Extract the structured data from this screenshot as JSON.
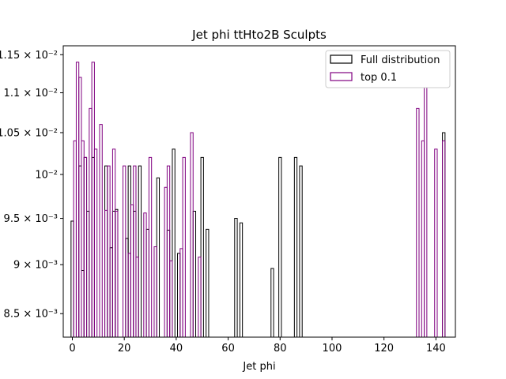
{
  "chart_data": {
    "type": "histogram",
    "title": "Jet phi ttHto2B Sculpts",
    "xlabel": "Jet phi",
    "ylabel": "",
    "yscale": "log",
    "xlim": [
      -3.5,
      147.5
    ],
    "ylim": [
      0.00827,
      0.01162
    ],
    "xticks": [
      0,
      20,
      40,
      60,
      80,
      100,
      120,
      140
    ],
    "xtick_labels": [
      "0",
      "20",
      "40",
      "60",
      "80",
      "100",
      "120",
      "140"
    ],
    "yticks": [
      0.0085,
      0.009,
      0.0095,
      0.01,
      0.0105,
      0.011,
      0.0115
    ],
    "ytick_labels": [
      "8.5 × 10⁻³",
      "9 × 10⁻³",
      "9.5 × 10⁻³",
      "10⁻²",
      "1.05 × 10⁻²",
      "1.1 × 10⁻²",
      "1.15 × 10⁻²"
    ],
    "legend_position": "top-right",
    "series": [
      {
        "name": "Full distribution",
        "color": "#000000",
        "x": [
          0,
          1,
          2,
          3,
          4,
          5,
          6,
          7,
          8,
          9,
          10,
          11,
          12,
          13,
          14,
          15,
          16,
          17,
          18,
          19,
          20,
          21,
          22,
          23,
          24,
          25,
          26,
          27,
          28,
          29,
          30,
          31,
          32,
          33,
          34,
          35,
          36,
          37,
          38,
          39,
          40,
          41,
          42,
          43,
          44,
          45,
          46,
          47,
          48,
          49,
          50,
          51,
          52,
          53,
          54,
          55,
          56,
          57,
          58,
          59,
          60,
          61,
          62,
          63,
          64,
          65,
          66,
          67,
          68,
          69,
          70,
          71,
          72,
          73,
          74,
          75,
          76,
          77,
          78,
          79,
          80,
          81,
          82,
          83,
          84,
          85,
          86,
          87,
          88,
          89,
          90,
          91,
          92,
          93,
          94,
          95,
          96,
          97,
          98,
          99,
          100,
          101,
          102,
          103,
          104,
          105,
          106,
          107,
          108,
          109,
          110,
          111,
          112,
          113,
          114,
          115,
          116,
          117,
          118,
          119,
          120,
          121,
          122,
          123,
          124,
          125,
          126,
          127,
          128,
          129,
          130,
          131,
          132,
          133,
          134,
          135,
          136,
          137,
          138,
          139,
          140,
          141,
          142,
          143
        ],
        "values": [
          0.00947,
          0.00827,
          0.00827,
          0.0101,
          0.00894,
          0.0102,
          0.00958,
          0.00827,
          0.0102,
          0.00827,
          0.00827,
          0.00827,
          0.00827,
          0.0101,
          0.00827,
          0.00918,
          0.00958,
          0.0096,
          0.00827,
          0.00827,
          0.00827,
          0.00928,
          0.0101,
          0.00827,
          0.00958,
          0.00827,
          0.0101,
          0.00827,
          0.00827,
          0.00938,
          0.00827,
          0.00827,
          0.00827,
          0.00996,
          0.00827,
          0.00827,
          0.00827,
          0.00937,
          0.00827,
          0.0103,
          0.00827,
          0.00912,
          0.00827,
          0.00827,
          0.00827,
          0.00827,
          0.00827,
          0.00958,
          0.00827,
          0.00827,
          0.0102,
          0.00827,
          0.00938,
          0.00827,
          0.00827,
          0.00827,
          0.00827,
          0.00827,
          0.00827,
          0.00827,
          0.00827,
          0.00827,
          0.00827,
          0.0095,
          0.00827,
          0.00945,
          0.00827,
          0.00827,
          0.00827,
          0.00827,
          0.00827,
          0.00827,
          0.00827,
          0.00827,
          0.00827,
          0.00827,
          0.00827,
          0.00896,
          0.00827,
          0.00827,
          0.0102,
          0.00827,
          0.00827,
          0.00827,
          0.00827,
          0.00827,
          0.0102,
          0.00827,
          0.0101,
          0.00827,
          0.00827,
          0.00827,
          0.00827,
          0.00827,
          0.00827,
          0.00827,
          0.00827,
          0.00827,
          0.00827,
          0.00827,
          0.00827,
          0.00827,
          0.00827,
          0.00827,
          0.00827,
          0.00827,
          0.00827,
          0.00827,
          0.00827,
          0.00827,
          0.00827,
          0.00827,
          0.00827,
          0.00827,
          0.00827,
          0.00827,
          0.00827,
          0.00827,
          0.00827,
          0.00827,
          0.00827,
          0.00827,
          0.00827,
          0.00827,
          0.00827,
          0.00827,
          0.00827,
          0.00827,
          0.00827,
          0.00827,
          0.00827,
          0.00827,
          0.00827,
          0.00827,
          0.00827,
          0.00827,
          0.00827,
          0.00827,
          0.00827,
          0.00827,
          0.00827,
          0.00827,
          0.00827,
          0.0105
        ]
      },
      {
        "name": "top 0.1",
        "color": "#800080",
        "x": [
          0,
          1,
          2,
          3,
          4,
          5,
          6,
          7,
          8,
          9,
          10,
          11,
          12,
          13,
          14,
          15,
          16,
          17,
          18,
          19,
          20,
          21,
          22,
          23,
          24,
          25,
          26,
          27,
          28,
          29,
          30,
          31,
          32,
          33,
          34,
          35,
          36,
          37,
          38,
          39,
          40,
          41,
          42,
          43,
          44,
          45,
          46,
          47,
          48,
          49,
          50,
          51,
          52,
          53,
          54,
          55,
          56,
          57,
          58,
          59,
          60,
          61,
          62,
          63,
          64,
          65,
          66,
          67,
          68,
          69,
          70,
          71,
          72,
          73,
          74,
          75,
          76,
          77,
          78,
          79,
          80,
          81,
          82,
          83,
          84,
          85,
          86,
          87,
          88,
          89,
          90,
          91,
          92,
          93,
          94,
          95,
          96,
          97,
          98,
          99,
          100,
          101,
          102,
          103,
          104,
          105,
          106,
          107,
          108,
          109,
          110,
          111,
          112,
          113,
          114,
          115,
          116,
          117,
          118,
          119,
          120,
          121,
          122,
          123,
          124,
          125,
          126,
          127,
          128,
          129,
          130,
          131,
          132,
          133,
          134,
          135,
          136,
          137,
          138,
          139,
          140,
          141,
          142,
          143
        ],
        "values": [
          0.00827,
          0.0104,
          0.0114,
          0.0112,
          0.0104,
          0.0102,
          0.00827,
          0.0108,
          0.0114,
          0.0103,
          0.00827,
          0.0106,
          0.00827,
          0.00959,
          0.0101,
          0.00827,
          0.0103,
          0.00958,
          0.00827,
          0.00827,
          0.0101,
          0.00827,
          0.00912,
          0.00965,
          0.0101,
          0.00908,
          0.00827,
          0.00827,
          0.00956,
          0.00827,
          0.0102,
          0.00827,
          0.00919,
          0.00827,
          0.00827,
          0.00827,
          0.00985,
          0.0101,
          0.00904,
          0.00827,
          0.00827,
          0.00827,
          0.00917,
          0.0102,
          0.00827,
          0.00827,
          0.0105,
          0.00827,
          0.00827,
          0.00908,
          0.00827,
          0.00827,
          0.00827,
          0.00827,
          0.00827,
          0.00827,
          0.00827,
          0.00827,
          0.00827,
          0.00827,
          0.00827,
          0.00827,
          0.00827,
          0.00827,
          0.00827,
          0.00827,
          0.00827,
          0.00827,
          0.00827,
          0.00827,
          0.00827,
          0.00827,
          0.00827,
          0.00827,
          0.00827,
          0.00827,
          0.00827,
          0.00827,
          0.00827,
          0.00827,
          0.00827,
          0.00827,
          0.00827,
          0.00827,
          0.00827,
          0.00827,
          0.00827,
          0.00827,
          0.00827,
          0.00827,
          0.00827,
          0.00827,
          0.00827,
          0.00827,
          0.00827,
          0.00827,
          0.00827,
          0.00827,
          0.00827,
          0.00827,
          0.00827,
          0.00827,
          0.00827,
          0.00827,
          0.00827,
          0.00827,
          0.00827,
          0.00827,
          0.00827,
          0.00827,
          0.00827,
          0.00827,
          0.00827,
          0.00827,
          0.00827,
          0.00827,
          0.00827,
          0.00827,
          0.00827,
          0.00827,
          0.00827,
          0.00827,
          0.00827,
          0.00827,
          0.00827,
          0.00827,
          0.00827,
          0.00827,
          0.00827,
          0.00827,
          0.00827,
          0.00827,
          0.00827,
          0.0108,
          0.00827,
          0.0104,
          0.0111,
          0.00827,
          0.00827,
          0.00827,
          0.0103,
          0.00827,
          0.00827,
          0.0104
        ]
      }
    ]
  }
}
